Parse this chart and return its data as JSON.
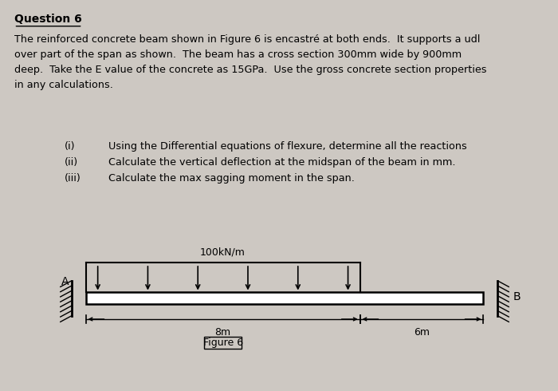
{
  "bg_color": "#cdc8c2",
  "title": "Question 6",
  "paragraph": "The reinforced concrete beam shown in Figure 6 is encastré at both ends.  It supports a udl\nover part of the span as shown.  The beam has a cross section 300mm wide by 900mm\ndeep.  Take the E value of the concrete as 15GPa.  Use the gross concrete section properties\nin any calculations.",
  "items": [
    [
      "(i)",
      "Using the Differential equations of flexure, determine all the reactions"
    ],
    [
      "(ii)",
      "Calculate the vertical deflection at the midspan of the beam in mm."
    ],
    [
      "(iii)",
      "Calculate the max sagging moment in the span."
    ]
  ],
  "udl_label": "100kN/m",
  "label_A": "A",
  "label_B": "B",
  "dim_left": "8m",
  "dim_right": "6m",
  "figure_caption": "Figure 6",
  "beam_color": "#000000",
  "text_color": "#000000",
  "title_fontsize": 10,
  "body_fontsize": 9.2,
  "item_fontsize": 9.2,
  "diagram_fontsize": 9
}
